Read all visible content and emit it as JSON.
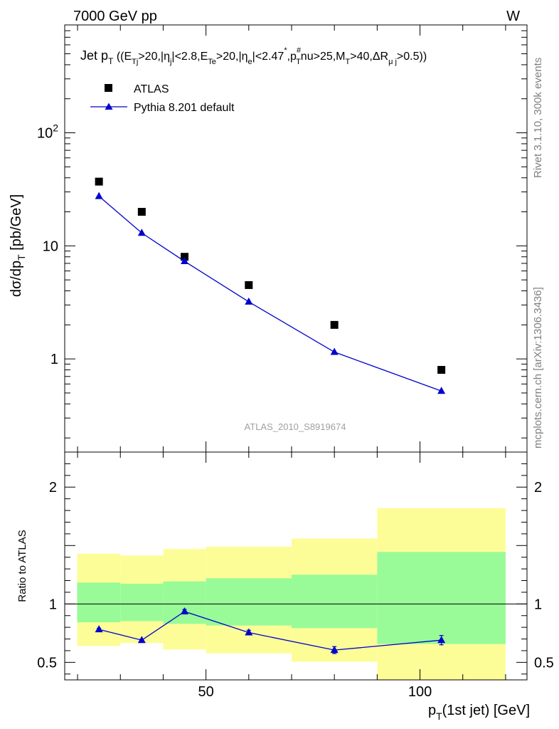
{
  "header": {
    "left": "7000 GeV pp",
    "right": "W"
  },
  "side_labels": {
    "top": "Rivet 3.1.10,  300k events",
    "bottom": "mcplots.cern.ch [arXiv:1306.3436]"
  },
  "analysis_tag": "ATLAS_2010_S8919674",
  "chart_data": [
    {
      "type": "scatter",
      "panel": "main",
      "title": "Jet pT ((ETj>20,|ηj|<2.8,ETe>20,|ηe|<2.47*,pT#nu>25,MT>40,ΔRμj>0.5))",
      "xlabel": "pT(1st jet) [GeV]",
      "ylabel": "dσ/dpT [pb/GeV]",
      "yscale": "log",
      "xlim": [
        17,
        125
      ],
      "ylim": [
        0.15,
        900
      ],
      "yticks": [
        {
          "value": 1,
          "label": "1"
        },
        {
          "value": 10,
          "label": "10"
        },
        {
          "value": 100,
          "label": "10^2"
        }
      ],
      "legend_position": "top-left",
      "series": [
        {
          "name": "ATLAS",
          "marker": "square",
          "color": "#000000",
          "x": [
            25,
            35,
            45,
            60,
            80,
            105
          ],
          "y": [
            37,
            20,
            8,
            4.5,
            2.0,
            0.8
          ]
        },
        {
          "name": "Pythia 8.201 default",
          "marker": "triangle",
          "color": "#0000cc",
          "line": true,
          "x": [
            25,
            35,
            45,
            60,
            80,
            105
          ],
          "y": [
            27.5,
            13,
            7.3,
            3.2,
            1.15,
            0.52
          ]
        }
      ]
    },
    {
      "type": "line",
      "panel": "ratio",
      "ylabel": "Ratio to ATLAS",
      "xlabel": "pT(1st jet) [GeV]",
      "xlim": [
        17,
        125
      ],
      "ylim": [
        0.35,
        2.3
      ],
      "yticks": [
        {
          "value": 0.5,
          "label": "0.5"
        },
        {
          "value": 1,
          "label": "1"
        },
        {
          "value": 2,
          "label": "2"
        }
      ],
      "xticks": [
        {
          "value": 50,
          "label": "50"
        },
        {
          "value": 100,
          "label": "100"
        }
      ],
      "reference_line": 1,
      "bands": [
        {
          "x0": 19.9,
          "x1": 30,
          "stat": [
            0.843,
            1.183
          ],
          "total": [
            0.64,
            1.43
          ]
        },
        {
          "x0": 30,
          "x1": 40,
          "stat": [
            0.853,
            1.173
          ],
          "total": [
            0.665,
            1.415
          ]
        },
        {
          "x0": 40,
          "x1": 50,
          "stat": [
            0.83,
            1.193
          ],
          "total": [
            0.61,
            1.47
          ]
        },
        {
          "x0": 50,
          "x1": 70,
          "stat": [
            0.815,
            1.22
          ],
          "total": [
            0.577,
            1.49
          ]
        },
        {
          "x0": 70,
          "x1": 90,
          "stat": [
            0.793,
            1.25
          ],
          "total": [
            0.505,
            1.56
          ]
        },
        {
          "x0": 90,
          "x1": 120,
          "stat": [
            0.657,
            1.445
          ],
          "total": [
            0.33,
            1.82
          ]
        }
      ],
      "band_colors": {
        "stat": "#98fb98",
        "total": "#fdfd98"
      },
      "series": [
        {
          "name": "Pythia 8.201 default",
          "marker": "triangle",
          "color": "#0000cc",
          "x": [
            25,
            35,
            45,
            60,
            80,
            105
          ],
          "y": [
            0.782,
            0.69,
            0.935,
            0.755,
            0.605,
            0.69
          ],
          "yerr": [
            0.01,
            0.008,
            0.018,
            0.02,
            0.03,
            0.04
          ]
        }
      ]
    }
  ]
}
